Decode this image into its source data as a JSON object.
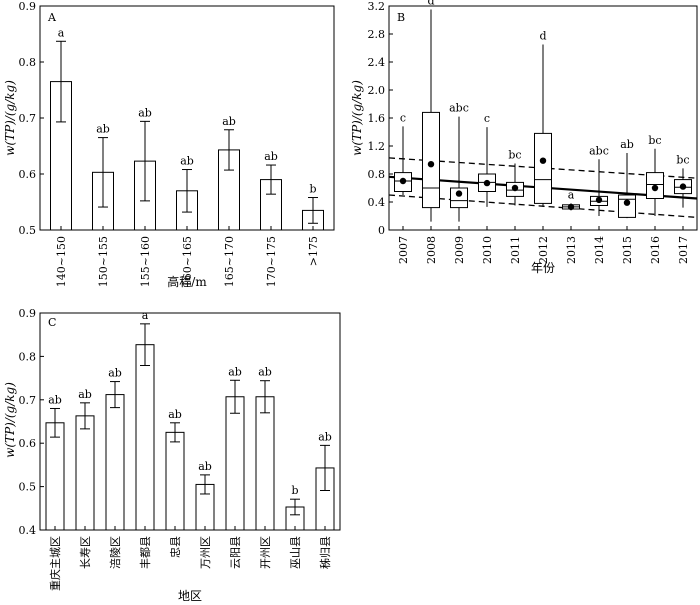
{
  "chart_data": [
    {
      "panel": "A",
      "type": "bar",
      "xlabel": "高程/m",
      "ylabel": "w(TP)/(g/kg)",
      "ylim": [
        0.5,
        0.9
      ],
      "yticks": [
        "0.5",
        "0.6",
        "0.7",
        "0.8",
        "0.9"
      ],
      "categories": [
        "140~150",
        "150~155",
        "155~160",
        "160~165",
        "165~170",
        "170~175",
        ">175"
      ],
      "values": [
        0.765,
        0.603,
        0.623,
        0.57,
        0.643,
        0.59,
        0.535
      ],
      "errors": [
        0.072,
        0.062,
        0.071,
        0.038,
        0.036,
        0.026,
        0.023
      ],
      "significance": [
        "a",
        "ab",
        "ab",
        "ab",
        "ab",
        "ab",
        "b"
      ]
    },
    {
      "panel": "B",
      "type": "box",
      "xlabel": "年份",
      "ylabel": "w(TP)/(g/kg)",
      "ylim": [
        0,
        3.2
      ],
      "yticks": [
        "0",
        "0.4",
        "0.8",
        "1.2",
        "1.6",
        "2.0",
        "2.4",
        "2.8",
        "3.2"
      ],
      "categories": [
        "2007",
        "2008",
        "2009",
        "2010",
        "2011",
        "2012",
        "2013",
        "2014",
        "2015",
        "2016",
        "2017"
      ],
      "boxes": [
        {
          "min": 0.5,
          "q1": 0.55,
          "median": 0.7,
          "q3": 0.82,
          "max": 1.48,
          "mean": 0.7
        },
        {
          "min": 0.12,
          "q1": 0.32,
          "median": 0.6,
          "q3": 1.68,
          "max": 3.15,
          "mean": 0.94
        },
        {
          "min": 0.12,
          "q1": 0.32,
          "median": 0.42,
          "q3": 0.6,
          "max": 1.62,
          "mean": 0.52
        },
        {
          "min": 0.33,
          "q1": 0.55,
          "median": 0.68,
          "q3": 0.8,
          "max": 1.47,
          "mean": 0.67
        },
        {
          "min": 0.35,
          "q1": 0.48,
          "median": 0.57,
          "q3": 0.68,
          "max": 0.95,
          "mean": 0.6
        },
        {
          "min": 0.33,
          "q1": 0.38,
          "median": 0.72,
          "q3": 1.38,
          "max": 2.65,
          "mean": 0.99
        },
        {
          "min": 0.28,
          "q1": 0.3,
          "median": 0.33,
          "q3": 0.36,
          "max": 0.38,
          "mean": 0.33
        },
        {
          "min": 0.2,
          "q1": 0.35,
          "median": 0.41,
          "q3": 0.48,
          "max": 1.01,
          "mean": 0.43
        },
        {
          "min": 0.17,
          "q1": 0.18,
          "median": 0.44,
          "q3": 0.5,
          "max": 1.1,
          "mean": 0.39
        },
        {
          "min": 0.2,
          "q1": 0.45,
          "median": 0.65,
          "q3": 0.82,
          "max": 1.16,
          "mean": 0.6
        },
        {
          "min": 0.32,
          "q1": 0.52,
          "median": 0.61,
          "q3": 0.72,
          "max": 0.88,
          "mean": 0.62
        }
      ],
      "trend_line": {
        "start": 0.76,
        "end": 0.45
      },
      "confidence_band": {
        "upper_start": 1.03,
        "upper_end": 0.74,
        "lower_start": 0.5,
        "lower_end": 0.18
      },
      "significance": [
        "c",
        "d",
        "abc",
        "c",
        "bc",
        "d",
        "a",
        "abc",
        "ab",
        "bc",
        "bc"
      ]
    },
    {
      "panel": "C",
      "type": "bar",
      "xlabel": "地区",
      "ylabel": "w(TP)/(g/kg)",
      "ylim": [
        0.4,
        0.9
      ],
      "yticks": [
        "0.4",
        "0.5",
        "0.6",
        "0.7",
        "0.8",
        "0.9"
      ],
      "categories": [
        "重庆主城区",
        "长寿区",
        "涪陵区",
        "丰都县",
        "忠县",
        "万州区",
        "云阳县",
        "开州区",
        "巫山县",
        "秭归县"
      ],
      "values": [
        0.647,
        0.663,
        0.712,
        0.827,
        0.625,
        0.505,
        0.707,
        0.707,
        0.453,
        0.543
      ],
      "errors": [
        0.033,
        0.03,
        0.03,
        0.048,
        0.022,
        0.022,
        0.038,
        0.037,
        0.018,
        0.052
      ],
      "significance": [
        "ab",
        "ab",
        "ab",
        "a",
        "ab",
        "ab",
        "ab",
        "ab",
        "b",
        "ab"
      ]
    }
  ]
}
